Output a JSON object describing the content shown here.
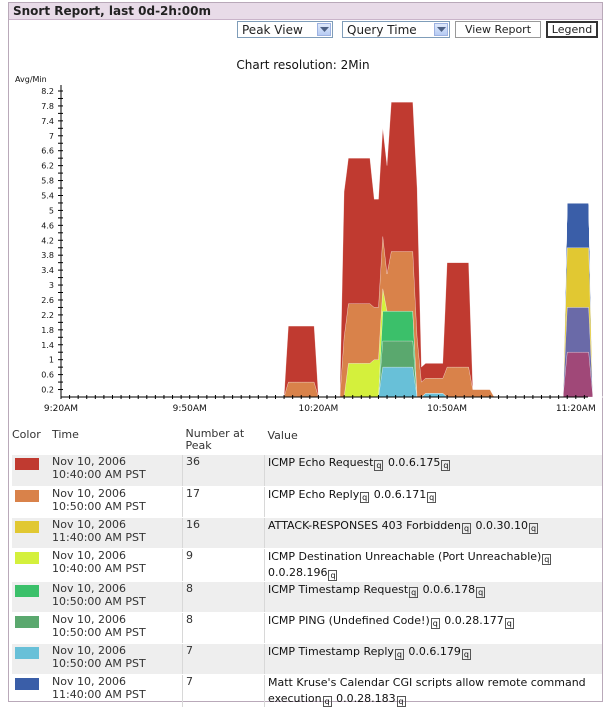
{
  "title": "Snort Report, last 0d-2h:00m",
  "controls": {
    "view_select": "Peak View",
    "query_select": "Query Time",
    "view_report": "View Report",
    "legend": "Legend"
  },
  "resolution": "Chart resolution: 2Min",
  "chart_data": {
    "type": "area",
    "ylabel": "Avg/Min",
    "yticks": [
      "8.2",
      "8",
      "7.8",
      "7.6",
      "7.4",
      "7.2",
      "7",
      "6.8",
      "6.6",
      "6.4",
      "6.2",
      "6",
      "5.8",
      "5.6",
      "5.4",
      "5.2",
      "5",
      "4.8",
      "4.6",
      "4.4",
      "4.2",
      "4",
      "3.8",
      "3.6",
      "3.4",
      "3.2",
      "3",
      "2.8",
      "2.6",
      "2.4",
      "2.2",
      "2",
      "1.8",
      "1.6",
      "1.4",
      "1.2",
      "1",
      "0.8",
      "0.6",
      "0.4",
      "0.2"
    ],
    "ytick_labels_shown": [
      "8.2",
      "7.8",
      "7.4",
      "7",
      "6.6",
      "6.2",
      "5.8",
      "5.4",
      "5",
      "4.6",
      "4.2",
      "3.8",
      "3.4",
      "3",
      "2.6",
      "2.2",
      "1.8",
      "1.4",
      "1",
      "0.6",
      "0.2"
    ],
    "xticks": [
      "9:20AM",
      "9:50AM",
      "10:20AM",
      "10:50AM",
      "11:20AM"
    ],
    "stacked": true,
    "series": [
      {
        "color": "#3a5ea8",
        "points": [
          [
            117,
            0
          ],
          [
            118,
            1.2
          ],
          [
            123,
            1.2
          ],
          [
            124,
            0
          ]
        ]
      },
      {
        "color": "#e1c832",
        "points": [
          [
            117,
            0
          ],
          [
            118,
            1.6
          ],
          [
            123,
            1.6
          ],
          [
            124,
            0
          ]
        ]
      },
      {
        "color": "#6a6aa8",
        "points": [
          [
            117,
            0
          ],
          [
            118,
            1.2
          ],
          [
            123,
            1.2
          ],
          [
            124,
            0
          ]
        ]
      },
      {
        "color": "#a04878",
        "points": [
          [
            117,
            0
          ],
          [
            118,
            1.2
          ],
          [
            123,
            1.2
          ],
          [
            124,
            0
          ]
        ]
      },
      {
        "color": "#c03a30",
        "points": [
          [
            52,
            0
          ],
          [
            53,
            1.5
          ],
          [
            59,
            1.5
          ],
          [
            60,
            0
          ],
          [
            65,
            0
          ],
          [
            66,
            3.9
          ],
          [
            72,
            3.9
          ],
          [
            73,
            2.9
          ],
          [
            76,
            2.9
          ],
          [
            77,
            4.0
          ],
          [
            83,
            4.0
          ],
          [
            84,
            0.4
          ],
          [
            89,
            0.4
          ],
          [
            90,
            2.8
          ],
          [
            95,
            2.8
          ],
          [
            96,
            0
          ],
          [
            106,
            0
          ]
        ]
      },
      {
        "color": "#d9824a",
        "points": [
          [
            52,
            0
          ],
          [
            53,
            0.4
          ],
          [
            59,
            0.4
          ],
          [
            60,
            0
          ],
          [
            65,
            0
          ],
          [
            66,
            1.6
          ],
          [
            72,
            1.6
          ],
          [
            73,
            1.4
          ],
          [
            75,
            1.4
          ],
          [
            76,
            1.0
          ],
          [
            77,
            1.6
          ],
          [
            83,
            1.6
          ],
          [
            84,
            0.4
          ],
          [
            89,
            0.4
          ],
          [
            90,
            0.8
          ],
          [
            95,
            0.8
          ],
          [
            96,
            0.2
          ],
          [
            100,
            0.2
          ],
          [
            101,
            0
          ]
        ]
      },
      {
        "color": "#d4f03c",
        "points": [
          [
            66,
            0
          ],
          [
            67,
            0.9
          ],
          [
            72,
            0.9
          ],
          [
            73,
            1.0
          ],
          [
            74,
            1.0
          ],
          [
            75,
            0.6
          ],
          [
            76,
            0
          ]
        ]
      },
      {
        "color": "#3bc06a",
        "points": [
          [
            74,
            0
          ],
          [
            75,
            0.8
          ],
          [
            82,
            0.8
          ],
          [
            83,
            0
          ]
        ]
      },
      {
        "color": "#5aa86e",
        "points": [
          [
            74,
            0
          ],
          [
            75,
            0.7
          ],
          [
            82,
            0.7
          ],
          [
            83,
            0
          ]
        ]
      },
      {
        "color": "#68c0d8",
        "points": [
          [
            74,
            0
          ],
          [
            75,
            0.8
          ],
          [
            82,
            0.8
          ],
          [
            83,
            0
          ],
          [
            84,
            0
          ],
          [
            85,
            0.1
          ],
          [
            89,
            0.1
          ],
          [
            90,
            0
          ]
        ]
      }
    ]
  },
  "legend_table": {
    "headers": {
      "color": "Color",
      "time": "Time",
      "number": "Number at Peak",
      "value": "Value"
    },
    "rows": [
      {
        "color": "#c03a30",
        "date": "Nov 10, 2006",
        "time": "10:40:00 AM PST",
        "number": "36",
        "value_name": "ICMP Echo Request",
        "value_ip": "0.0.6.175"
      },
      {
        "color": "#d9824a",
        "date": "Nov 10, 2006",
        "time": "10:50:00 AM PST",
        "number": "17",
        "value_name": "ICMP Echo Reply",
        "value_ip": "0.0.6.171"
      },
      {
        "color": "#e1c832",
        "date": "Nov 10, 2006",
        "time": "11:40:00 AM PST",
        "number": "16",
        "value_name": "ATTACK-RESPONSES 403 Forbidden",
        "value_ip": "0.0.30.10"
      },
      {
        "color": "#d4f03c",
        "date": "Nov 10, 2006",
        "time": "10:40:00 AM PST",
        "number": "9",
        "value_name": "ICMP Destination Unreachable (Port Unreachable)",
        "value_ip": "0.0.28.196"
      },
      {
        "color": "#3bc06a",
        "date": "Nov 10, 2006",
        "time": "10:50:00 AM PST",
        "number": "8",
        "value_name": "ICMP Timestamp Request",
        "value_ip": "0.0.6.178"
      },
      {
        "color": "#5aa86e",
        "date": "Nov 10, 2006",
        "time": "10:50:00 AM PST",
        "number": "8",
        "value_name": "ICMP PING (Undefined Code!)",
        "value_ip": "0.0.28.177"
      },
      {
        "color": "#68c0d8",
        "date": "Nov 10, 2006",
        "time": "10:50:00 AM PST",
        "number": "7",
        "value_name": "ICMP Timestamp Reply",
        "value_ip": "0.0.6.179"
      },
      {
        "color": "#3a5ea8",
        "date": "Nov 10, 2006",
        "time": "11:40:00 AM PST",
        "number": "7",
        "value_name": "Matt Kruse's Calendar CGI scripts allow remote command execution",
        "value_ip": "0.0.28.183"
      }
    ]
  },
  "query_icon": "q"
}
